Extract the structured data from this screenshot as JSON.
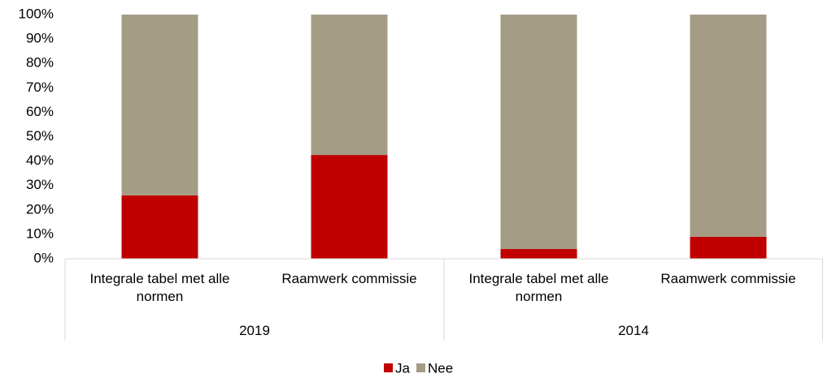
{
  "chart_data": {
    "type": "stacked_bar_percent",
    "categories": [
      "Integrale tabel met alle normen",
      "Raamwerk commissie",
      "Integrale tabel met alle normen",
      "Raamwerk commissie"
    ],
    "groups": [
      "2019",
      "2014"
    ],
    "series": [
      {
        "name": "Ja",
        "color": "#c00000",
        "values": [
          26,
          42.5,
          4,
          9
        ]
      },
      {
        "name": "Nee",
        "color": "#a59c86",
        "values": [
          74,
          57.5,
          96,
          91
        ]
      }
    ],
    "ylim": [
      0,
      100
    ],
    "yticks": [
      {
        "value": 0,
        "label": "0%"
      },
      {
        "value": 10,
        "label": "10%"
      },
      {
        "value": 20,
        "label": "20%"
      },
      {
        "value": 30,
        "label": "30%"
      },
      {
        "value": 40,
        "label": "40%"
      },
      {
        "value": 50,
        "label": "50%"
      },
      {
        "value": 60,
        "label": "60%"
      },
      {
        "value": 70,
        "label": "70%"
      },
      {
        "value": 80,
        "label": "80%"
      },
      {
        "value": 90,
        "label": "90%"
      },
      {
        "value": 100,
        "label": "100%"
      }
    ],
    "legend": "bottom"
  }
}
